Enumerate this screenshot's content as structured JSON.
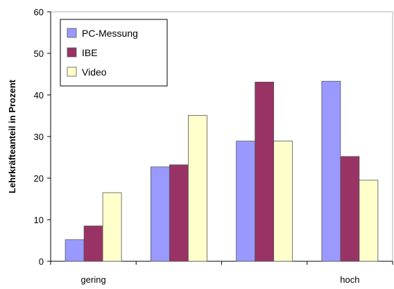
{
  "chart_data": {
    "type": "bar",
    "title": "",
    "xlabel": "",
    "ylabel": "Lehrkräfteanteil in Prozent",
    "ylim": [
      0,
      60
    ],
    "yticks": [
      0,
      10,
      20,
      30,
      40,
      50,
      60
    ],
    "grid": false,
    "legend_position": "top-left",
    "categories": [
      "gering",
      "",
      "",
      "hoch"
    ],
    "series": [
      {
        "name": "PC-Messung",
        "color": "#9999ff",
        "values": [
          5.2,
          22.7,
          28.9,
          43.3
        ]
      },
      {
        "name": "IBE",
        "color": "#993366",
        "values": [
          8.5,
          23.2,
          43.1,
          25.2
        ]
      },
      {
        "name": "Video",
        "color": "#ffffcc",
        "values": [
          16.5,
          35.1,
          28.9,
          19.5
        ]
      }
    ]
  }
}
